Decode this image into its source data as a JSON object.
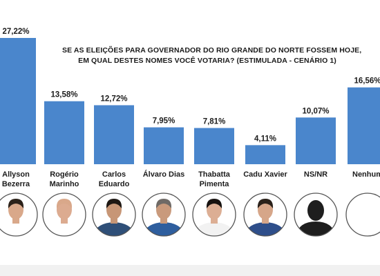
{
  "chart_data": {
    "type": "bar",
    "title_lines": [
      "SE AS ELEIÇÕES PARA GOVERNADOR DO RIO GRANDE DO NORTE FOSSEM HOJE,",
      "EM QUAL DESTES NOMES VOCÊ VOTARIA? (ESTIMULADA - CENÁRIO 1)"
    ],
    "categories": [
      [
        "Allyson",
        "Bezerra"
      ],
      [
        "Rogério",
        "Marinho"
      ],
      [
        "Carlos",
        "Eduardo"
      ],
      [
        "Álvaro Dias"
      ],
      [
        "Thabatta",
        "Pimenta"
      ],
      [
        "Cadu Xavier"
      ],
      [
        "NS/NR"
      ],
      [
        "Nenhum"
      ]
    ],
    "values": [
      27.22,
      13.58,
      12.72,
      7.95,
      7.81,
      4.11,
      10.07,
      16.56
    ],
    "value_labels": [
      "27,22%",
      "13,58%",
      "12,72%",
      "7,95%",
      "7,81%",
      "4,11%",
      "10,07%",
      "16,56%"
    ],
    "ylim": [
      0,
      27.22
    ],
    "bar_color": "#4a86cc",
    "grid": false,
    "legend": "none"
  },
  "photos": [
    {
      "icon": "candidate-photo-icon",
      "skin": "#d9a88a",
      "hair": "#2b2119",
      "shirt": "#ffffff"
    },
    {
      "icon": "candidate-photo-icon",
      "skin": "#dcab90",
      "hair": "#d9a88a",
      "shirt": "#ffffff"
    },
    {
      "icon": "candidate-photo-icon",
      "skin": "#c79676",
      "hair": "#1e1813",
      "shirt": "#2f4f78"
    },
    {
      "icon": "candidate-photo-icon",
      "skin": "#c99a7c",
      "hair": "#6f6a66",
      "shirt": "#2e5e9e"
    },
    {
      "icon": "candidate-photo-icon",
      "skin": "#dcae94",
      "hair": "#171210",
      "shirt": "#f2f2f2"
    },
    {
      "icon": "candidate-photo-icon",
      "skin": "#d6a689",
      "hair": "#2a211a",
      "shirt": "#2e4e8a"
    },
    {
      "icon": "unknown-person-silhouette-icon",
      "skin": "#1e1e1e",
      "hair": "#1e1e1e",
      "shirt": "#1e1e1e"
    },
    {
      "icon": "blank-photo-icon",
      "skin": "",
      "hair": "",
      "shirt": ""
    }
  ]
}
